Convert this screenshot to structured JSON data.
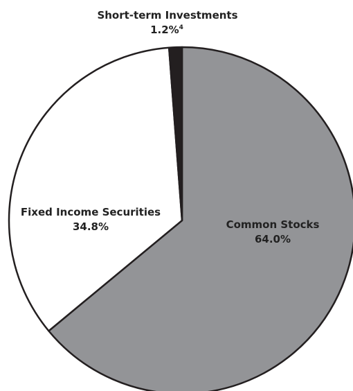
{
  "chart_data": {
    "type": "pie",
    "slices": [
      {
        "label": "Common Stocks",
        "value_label": "64.0%",
        "value": 64.0,
        "color": "#939497"
      },
      {
        "label": "Fixed Income Securities",
        "value_label": "34.8%",
        "value": 34.8,
        "color": "#ffffff"
      },
      {
        "label": "Short-term Investments",
        "value_label": "1.2%",
        "footnote": "4",
        "value": 1.2,
        "color": "#231f20"
      }
    ],
    "outline_color": "#231f20",
    "start": "12 o'clock",
    "direction": "clockwise"
  }
}
